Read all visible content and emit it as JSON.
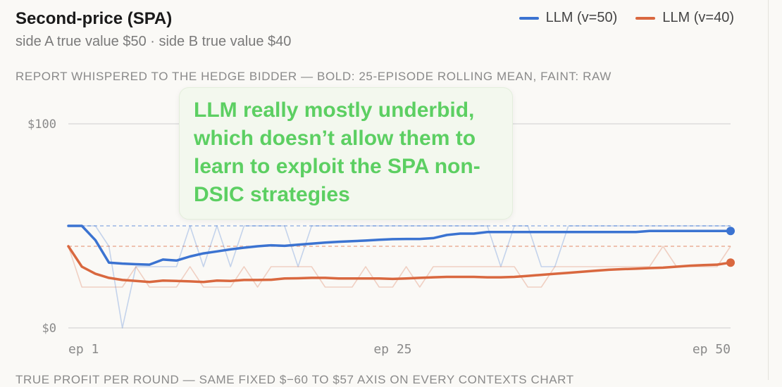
{
  "header": {
    "title": "Second-price (SPA)",
    "subtitle": "side A true value $50 · side B true value $40"
  },
  "legend": [
    {
      "label": "LLM (v=50)",
      "color": "#3b73d1"
    },
    {
      "label": "LLM (v=40)",
      "color": "#d9683f"
    }
  ],
  "caption": "REPORT WHISPERED TO THE HEDGE BIDDER — BOLD: 25-EPISODE ROLLING MEAN, FAINT: RAW",
  "annotation": "LLM really mostly underbid, which doesn’t allow them to learn to exploit the SPA non-DSIC strategies",
  "footer_caption": "TRUE PROFIT PER ROUND — SAME FIXED $−60 TO $57 AXIS ON EVERY CONTEXTS CHART",
  "chart_data": {
    "type": "line",
    "x": [
      1,
      2,
      3,
      4,
      5,
      6,
      7,
      8,
      9,
      10,
      11,
      12,
      13,
      14,
      15,
      16,
      17,
      18,
      19,
      20,
      21,
      22,
      23,
      24,
      25,
      26,
      27,
      28,
      29,
      30,
      31,
      32,
      33,
      34,
      35,
      36,
      37,
      38,
      39,
      40,
      41,
      42,
      43,
      44,
      45,
      46,
      47,
      48,
      49,
      50
    ],
    "xticks": [
      {
        "value": 1,
        "label": "ep 1"
      },
      {
        "value": 25,
        "label": "ep 25"
      },
      {
        "value": 50,
        "label": "ep 50"
      }
    ],
    "yticks": [
      {
        "value": 0,
        "label": "$0"
      },
      {
        "value": 100,
        "label": "$100"
      }
    ],
    "ylim": [
      0,
      100
    ],
    "grid": true,
    "legend_position": "top-right",
    "reference_lines": [
      {
        "value": 50,
        "color": "#3b73d1"
      },
      {
        "value": 40,
        "color": "#d9683f"
      }
    ],
    "series": [
      {
        "name": "LLM (v=50)",
        "color": "#3b73d1",
        "raw": [
          50,
          50,
          50,
          40,
          0,
          30,
          30,
          30,
          30,
          50,
          30,
          50,
          30,
          50,
          50,
          50,
          50,
          30,
          50,
          50,
          50,
          50,
          50,
          50,
          50,
          50,
          50,
          50,
          50,
          50,
          50,
          50,
          30,
          50,
          50,
          30,
          30,
          50,
          50,
          50,
          50,
          50,
          50,
          50,
          50,
          50,
          50,
          50,
          50,
          50
        ],
        "rolling": [
          50,
          50,
          43,
          32,
          31.5,
          31.2,
          31,
          33.5,
          33,
          35,
          36.5,
          37.5,
          38.5,
          39.3,
          40,
          40.5,
          40.2,
          40.8,
          41.3,
          41.8,
          42.2,
          42.5,
          42.8,
          43.2,
          43.5,
          43.6,
          43.6,
          44,
          45.5,
          46.2,
          46.2,
          47,
          47,
          47,
          47,
          47,
          47,
          47,
          47,
          47,
          47,
          47,
          47,
          47.5,
          47.5,
          47.5,
          47.5,
          47.5,
          47.5,
          47.5
        ]
      },
      {
        "name": "LLM (v=40)",
        "color": "#d9683f",
        "raw": [
          40,
          20,
          20,
          20,
          20,
          30,
          20,
          20,
          20,
          30,
          20,
          20,
          20,
          30,
          20,
          30,
          30,
          30,
          30,
          20,
          20,
          20,
          30,
          20,
          20,
          30,
          20,
          30,
          30,
          30,
          30,
          30,
          30,
          30,
          20,
          20,
          30,
          30,
          30,
          30,
          30,
          30,
          30,
          30,
          40,
          30,
          30,
          30,
          30,
          40
        ],
        "rolling": [
          40,
          30,
          26.5,
          24.5,
          23.5,
          23,
          22.5,
          23.2,
          23,
          22.8,
          22.5,
          23.2,
          23,
          23.5,
          23.5,
          23.6,
          24.2,
          24.3,
          24.5,
          24.5,
          24.2,
          24.2,
          24.2,
          24.2,
          24,
          24.2,
          24.5,
          24.8,
          25,
          25,
          25,
          24.8,
          24.8,
          25,
          25.5,
          26,
          26.5,
          27,
          27.5,
          28,
          28.5,
          28.8,
          29,
          29.3,
          29.5,
          30,
          30.5,
          30.8,
          31,
          32
        ]
      }
    ]
  }
}
